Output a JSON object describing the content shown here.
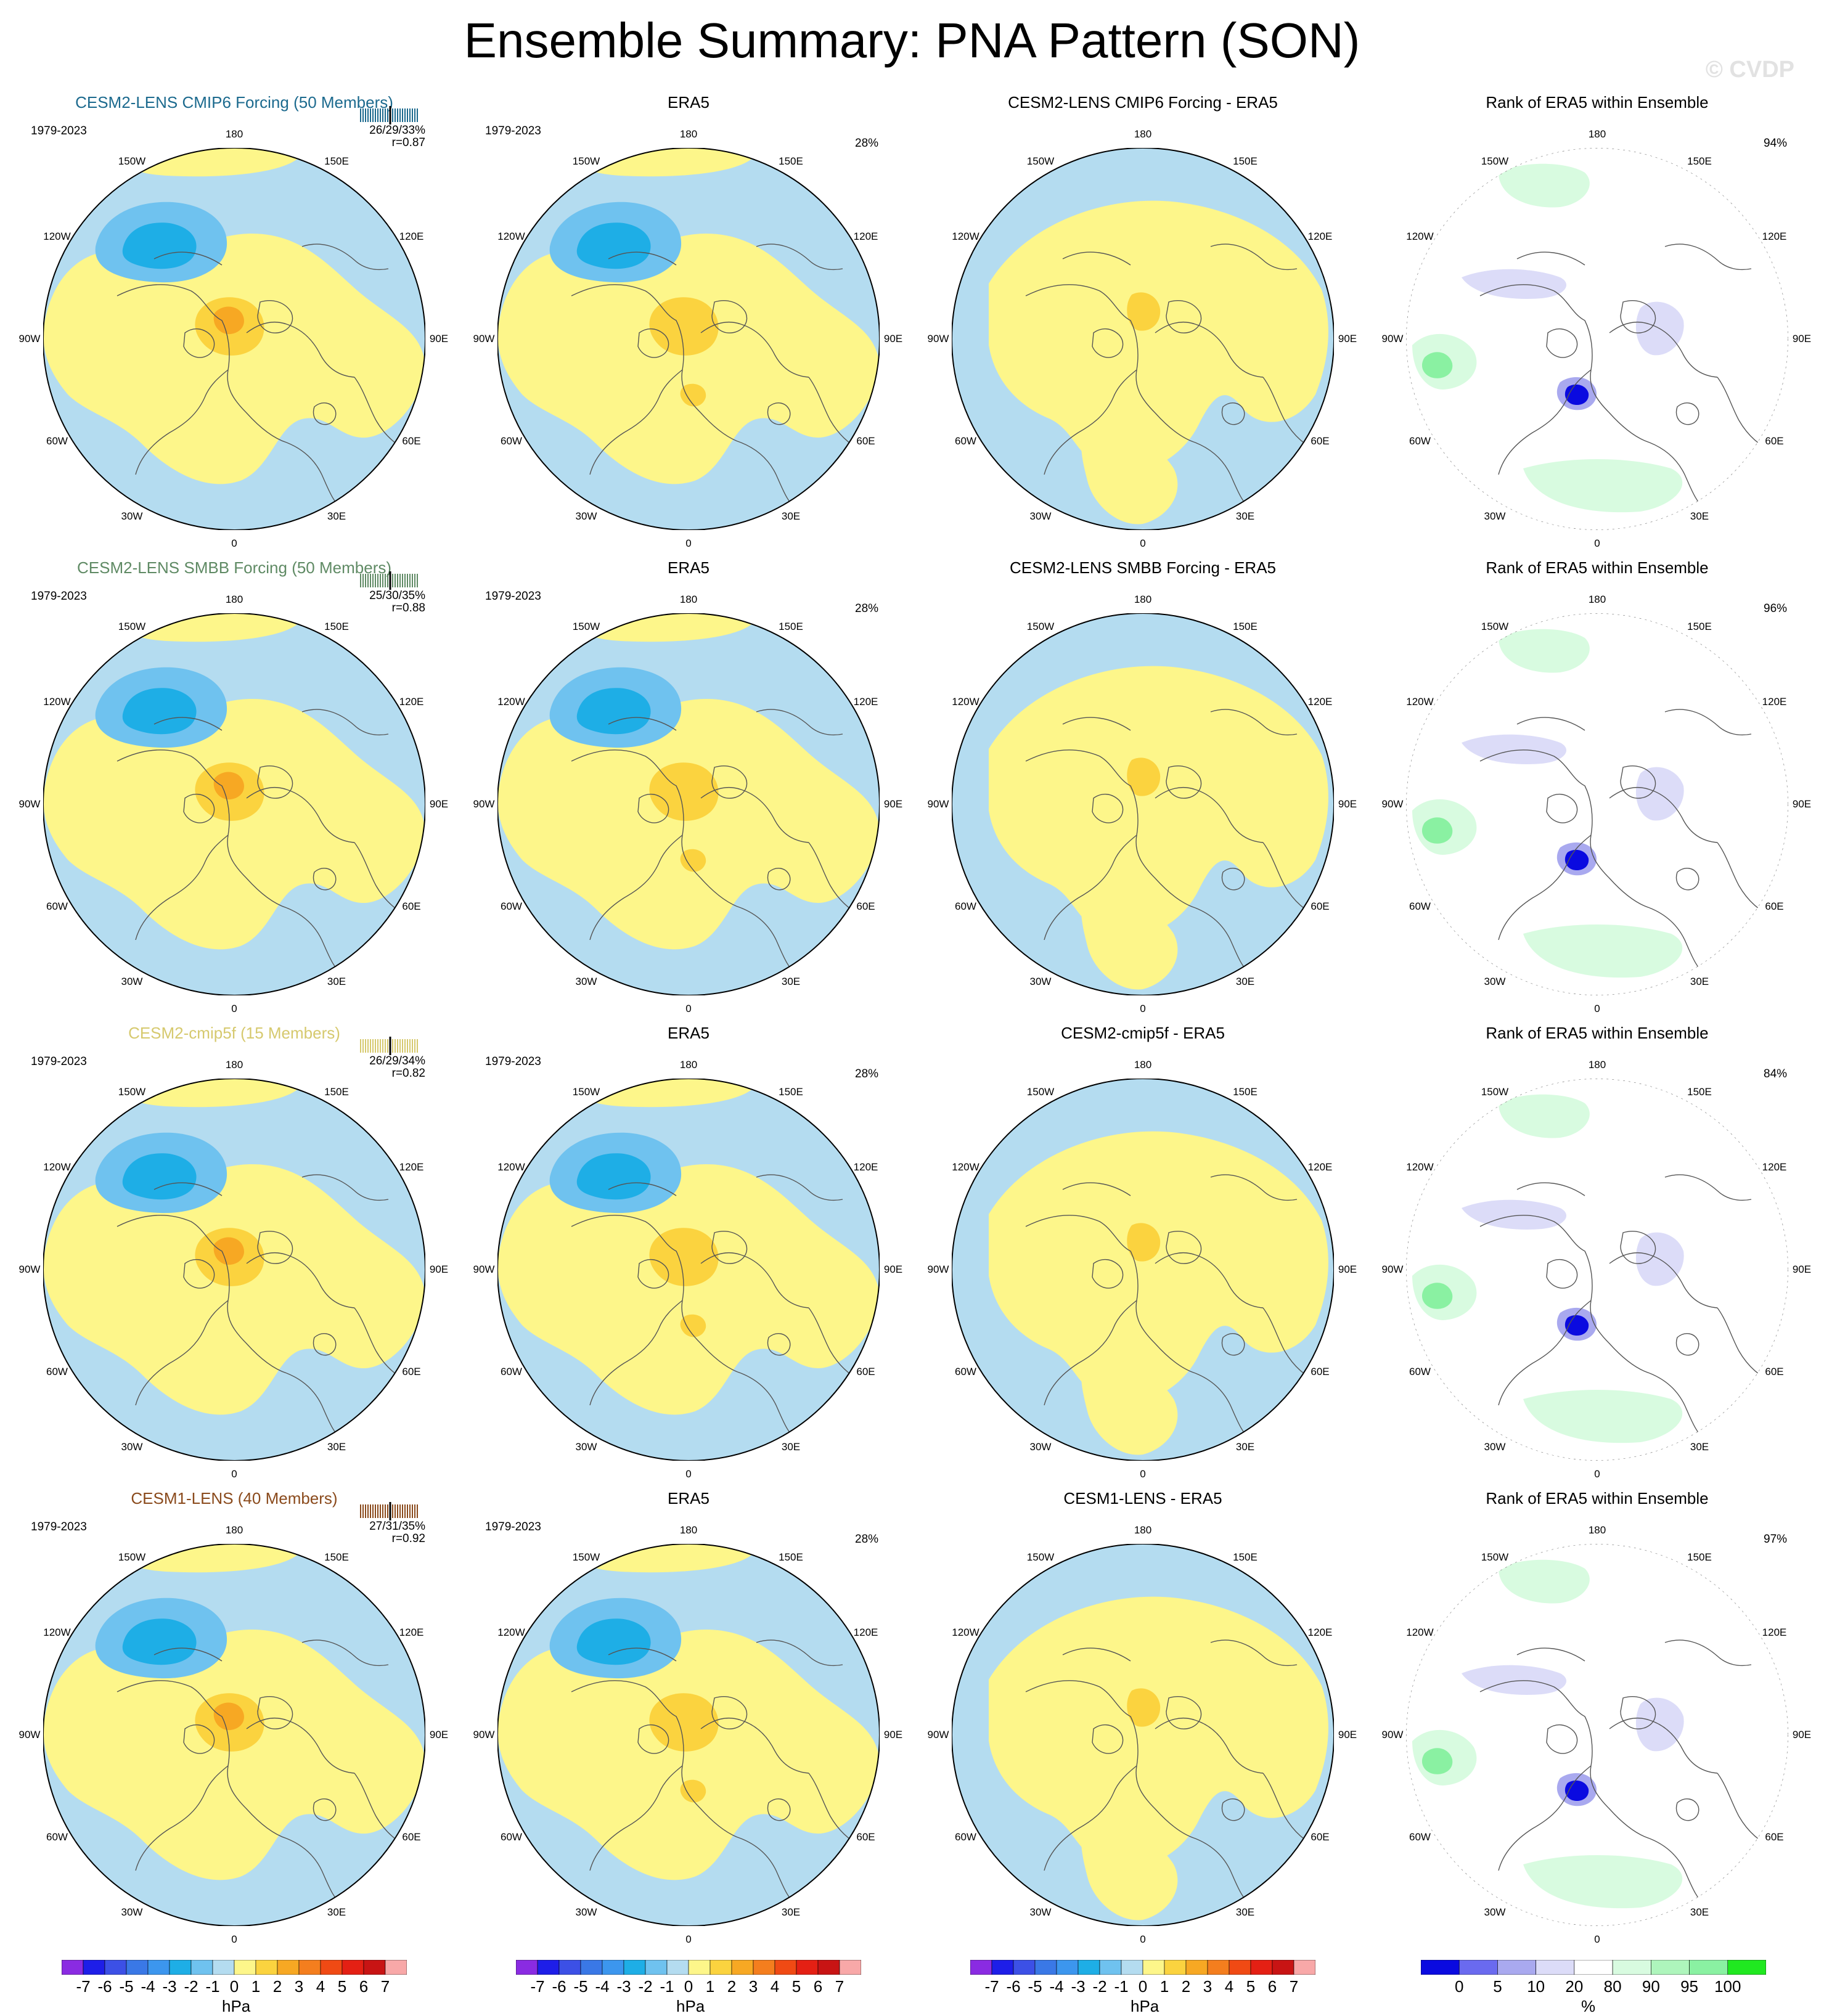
{
  "title": "Ensemble Summary: PNA Pattern (SON)",
  "watermark": "© CVDP",
  "period": "1979-2023",
  "lon_labels": [
    "180",
    "150E",
    "120E",
    "90E",
    "60E",
    "30E",
    "0",
    "30W",
    "60W",
    "90W",
    "120W",
    "150W"
  ],
  "colors": {
    "lightblue": "#b4dcf0",
    "yellow": "#fdf68a",
    "gold": "#fbd33f",
    "orange": "#f7a823",
    "blue1": "#6fc2ef",
    "blue2": "#1eaee6",
    "green_light": "#d8fbe0",
    "green_mid": "#8af1a2",
    "green_bright": "#20e820",
    "purple_light": "#dcdcf8",
    "purple_mid": "#a9a9ef",
    "blue_dark": "#0a0ae0"
  },
  "rows": [
    {
      "model": "CESM2-LENS CMIP6 Forcing (50 Members)",
      "model_color": "#1c6a8e",
      "stats_line1": "26/29/33%",
      "stats_line2": "r=0.87",
      "era5_title": "ERA5",
      "era5_pct": "28%",
      "diff_title": "CESM2-LENS CMIP6 Forcing - ERA5",
      "rank_title": "Rank of ERA5 within Ensemble",
      "rank_pct": "94%"
    },
    {
      "model": "CESM2-LENS SMBB Forcing (50 Members)",
      "model_color": "#5f8a64",
      "stats_line1": "25/30/35%",
      "stats_line2": "r=0.88",
      "era5_title": "ERA5",
      "era5_pct": "28%",
      "diff_title": "CESM2-LENS SMBB Forcing - ERA5",
      "rank_title": "Rank of ERA5 within Ensemble",
      "rank_pct": "96%"
    },
    {
      "model": "CESM2-cmip5f (15 Members)",
      "model_color": "#d6c96e",
      "stats_line1": "26/29/34%",
      "stats_line2": "r=0.82",
      "era5_title": "ERA5",
      "era5_pct": "28%",
      "diff_title": "CESM2-cmip5f - ERA5",
      "rank_title": "Rank of ERA5 within Ensemble",
      "rank_pct": "84%"
    },
    {
      "model": "CESM1-LENS (40 Members)",
      "model_color": "#8a4a1c",
      "stats_line1": "27/31/35%",
      "stats_line2": "r=0.92",
      "era5_title": "ERA5",
      "era5_pct": "28%",
      "diff_title": "CESM1-LENS - ERA5",
      "rank_title": "Rank of ERA5 within Ensemble",
      "rank_pct": "97%"
    }
  ],
  "colorbar_hpa": {
    "unit": "hPa",
    "ticks": [
      "-7",
      "-6",
      "-5",
      "-4",
      "-3",
      "-2",
      "-1",
      "0",
      "1",
      "2",
      "3",
      "4",
      "5",
      "6",
      "7"
    ],
    "colors": [
      "#8a2be2",
      "#1e1ee8",
      "#3c50e6",
      "#3a78e6",
      "#3c96ee",
      "#1eaee6",
      "#6fc2ef",
      "#b4dcf0",
      "#fdf68a",
      "#fbd33f",
      "#f7a823",
      "#f47e1e",
      "#f04a14",
      "#e42014",
      "#c81414",
      "#f8a8a8"
    ]
  },
  "colorbar_pct": {
    "unit": "%",
    "ticks": [
      "0",
      "5",
      "10",
      "20",
      "80",
      "90",
      "95",
      "100"
    ],
    "colors": [
      "#0a0ae0",
      "#6a6aef",
      "#a9a9ef",
      "#dcdcf8",
      "#ffffff",
      "#d8fbe0",
      "#aef5bc",
      "#8af1a2",
      "#20e820"
    ]
  }
}
